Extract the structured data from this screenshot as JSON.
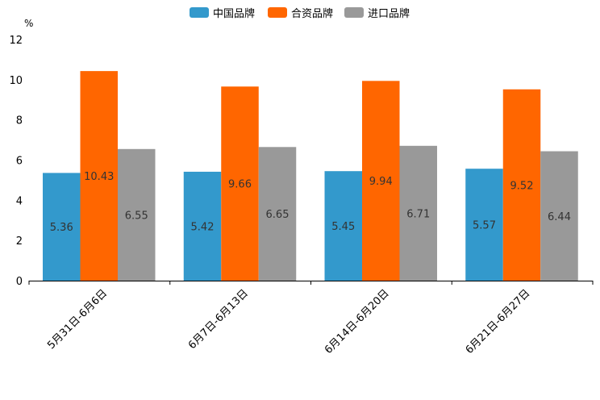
{
  "chart_data": {
    "type": "bar",
    "y_unit": "%",
    "categories": [
      "5月31日-6月6日",
      "6月7日-6月13日",
      "6月14日-6月20日",
      "6月21日-6月27日"
    ],
    "series": [
      {
        "name": "中国品牌",
        "color": "#3399cc",
        "values": [
          5.36,
          5.42,
          5.45,
          5.57
        ],
        "labels": [
          "5.36",
          "5.42",
          "5.45",
          "5.57"
        ]
      },
      {
        "name": "合资品牌",
        "color": "#ff6600",
        "values": [
          10.43,
          9.66,
          9.94,
          9.52
        ],
        "labels": [
          "10.43",
          "9.66",
          "9.94",
          "9.52"
        ]
      },
      {
        "name": "进口品牌",
        "color": "#999999",
        "values": [
          6.55,
          6.65,
          6.71,
          6.44
        ],
        "labels": [
          "6.55",
          "6.65",
          "6.71",
          "6.44"
        ]
      }
    ],
    "ylim": [
      0,
      12
    ],
    "yticks": [
      "0",
      "2",
      "4",
      "6",
      "8",
      "10",
      "12"
    ],
    "legend_position": "top-center",
    "grid": false
  }
}
